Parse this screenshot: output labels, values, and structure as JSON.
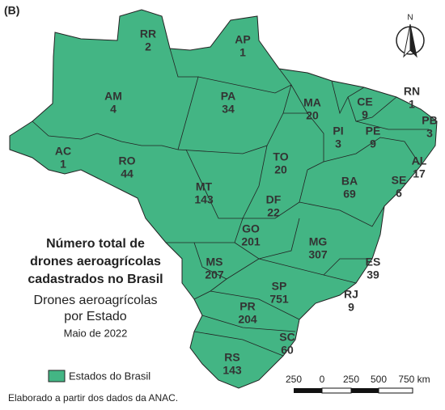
{
  "panel_label": "(B)",
  "north": "N",
  "title_lines": [
    "Número total de",
    "drones aeroagrícolas",
    "cadastrados no Brasil"
  ],
  "subtitle_lines": [
    "Drones aeroagrícolas",
    "por Estado"
  ],
  "date": "Maio de 2022",
  "legend": "Estados do Brasil",
  "source": "Elaborado a partir dos dados da ANAC.",
  "scale_labels": [
    "250",
    "0",
    "250",
    "500",
    "750 km"
  ],
  "states": [
    {
      "code": "RR",
      "count": 2
    },
    {
      "code": "AP",
      "count": 1
    },
    {
      "code": "AM",
      "count": 4
    },
    {
      "code": "PA",
      "count": 34
    },
    {
      "code": "MA",
      "count": 20
    },
    {
      "code": "CE",
      "count": 9
    },
    {
      "code": "RN",
      "count": 1
    },
    {
      "code": "PB",
      "count": 3
    },
    {
      "code": "PI",
      "count": 3
    },
    {
      "code": "PE",
      "count": 9
    },
    {
      "code": "AL",
      "count": 17
    },
    {
      "code": "AC",
      "count": 1
    },
    {
      "code": "RO",
      "count": 44
    },
    {
      "code": "TO",
      "count": 20
    },
    {
      "code": "SE",
      "count": 6
    },
    {
      "code": "MT",
      "count": 143
    },
    {
      "code": "BA",
      "count": 69
    },
    {
      "code": "DF",
      "count": 22
    },
    {
      "code": "GO",
      "count": 201
    },
    {
      "code": "MG",
      "count": 307
    },
    {
      "code": "MS",
      "count": 207
    },
    {
      "code": "ES",
      "count": 39
    },
    {
      "code": "SP",
      "count": 751
    },
    {
      "code": "RJ",
      "count": 9
    },
    {
      "code": "PR",
      "count": 204
    },
    {
      "code": "SC",
      "count": 60
    },
    {
      "code": "RS",
      "count": 143
    }
  ]
}
